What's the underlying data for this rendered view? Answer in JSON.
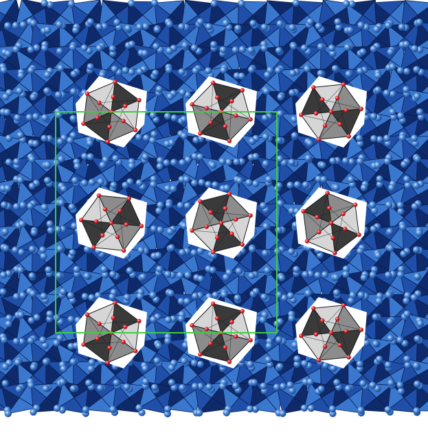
{
  "diagram": {
    "type": "crystal-structure-polyhedral-view",
    "colors": {
      "background": "#ffffff",
      "framework_dark": "#0f2a6a",
      "framework_mid": "#1f4fa8",
      "framework_light": "#3a78cf",
      "framework_edge": "#0a1e4e",
      "framework_atom": "#4b88d4",
      "framework_atom_highlight": "#cfe3ff",
      "guest_light": "#d6d6d6",
      "guest_mid": "#8c8c8c",
      "guest_dark": "#3a3a3a",
      "guest_edge": "#1a1a1a",
      "oxygen_atom": "#e0232b",
      "unit_cell": "#3ccf3c"
    },
    "components": [
      {
        "name": "framework-polyhedra",
        "icon": "blue-octahedra"
      },
      {
        "name": "guest-clusters",
        "icon": "gray-octahedral-clusters",
        "count": 9
      },
      {
        "name": "unit-cell-outline",
        "icon": "green-rectangle"
      }
    ]
  }
}
